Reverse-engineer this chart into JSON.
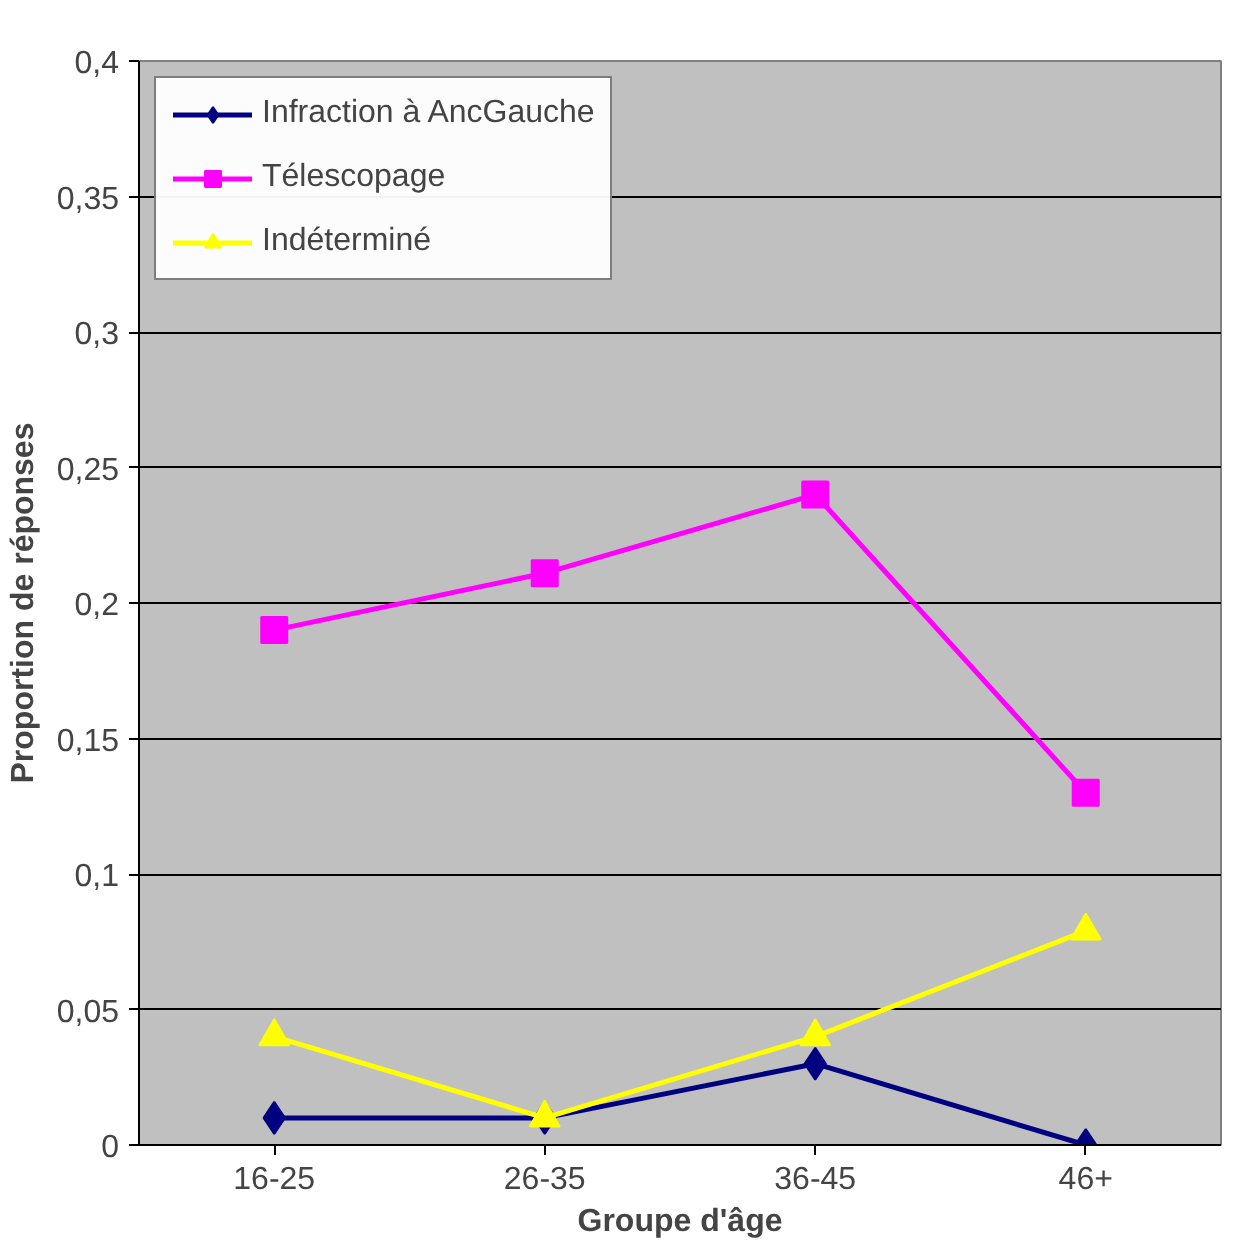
{
  "chart_data": {
    "type": "line",
    "xlabel": "Groupe d'âge",
    "ylabel": "Proportion de réponses",
    "categories": [
      "16-25",
      "26-35",
      "36-45",
      "46+"
    ],
    "series": [
      {
        "name": "Infraction à AncGauche",
        "color": "#000080",
        "marker": "diamond",
        "values": [
          0.01,
          0.01,
          0.03,
          0
        ]
      },
      {
        "name": "Télescopage",
        "color": "#ff00ff",
        "marker": "square",
        "values": [
          0.19,
          0.211,
          0.24,
          0.13
        ]
      },
      {
        "name": "Indéterminé",
        "color": "#ffff00",
        "marker": "triangle",
        "values": [
          0.04,
          0.01,
          0.04,
          0.079
        ]
      }
    ],
    "ylim": [
      0,
      0.4
    ],
    "yticks": [
      {
        "value": 0,
        "label": "0"
      },
      {
        "value": 0.05,
        "label": "0,05"
      },
      {
        "value": 0.1,
        "label": "0,1"
      },
      {
        "value": 0.15,
        "label": "0,15"
      },
      {
        "value": 0.2,
        "label": "0,2"
      },
      {
        "value": 0.25,
        "label": "0,25"
      },
      {
        "value": 0.3,
        "label": "0,3"
      },
      {
        "value": 0.35,
        "label": "0,35"
      },
      {
        "value": 0.4,
        "label": "0,4"
      }
    ],
    "grid": "y",
    "legend": "top left",
    "line_style": "solid"
  }
}
